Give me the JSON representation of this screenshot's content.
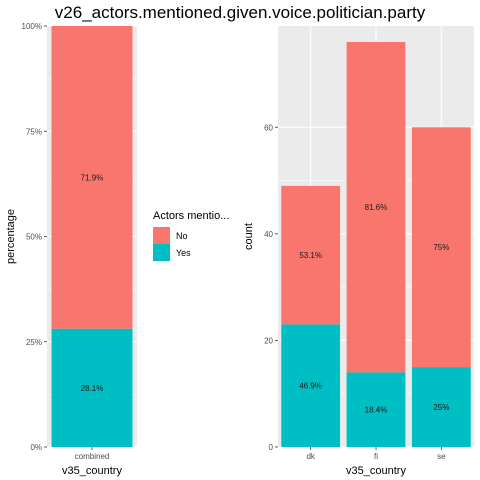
{
  "title": "v26_actors.mentioned.given.voice.politician.party",
  "legend": {
    "title": "Actors mentio...",
    "items": [
      {
        "label": "No",
        "color": "#F8766D"
      },
      {
        "label": "Yes",
        "color": "#00BFC4"
      }
    ]
  },
  "colors": {
    "no": "#F8766D",
    "yes": "#00BFC4",
    "panel": "#EBEBEB",
    "grid": "#FFFFFF"
  },
  "chart_data": [
    {
      "type": "bar",
      "stacked": true,
      "xlabel": "v35_country",
      "ylabel": "percentage",
      "categories": [
        "combined"
      ],
      "yticks": [
        "0%",
        "25%",
        "50%",
        "75%",
        "100%"
      ],
      "ylim": [
        0,
        1
      ],
      "series": [
        {
          "name": "No",
          "values": [
            0.719
          ],
          "labels": [
            "71.9%"
          ]
        },
        {
          "name": "Yes",
          "values": [
            0.281
          ],
          "labels": [
            "28.1%"
          ]
        }
      ]
    },
    {
      "type": "bar",
      "stacked": true,
      "xlabel": "v35_country",
      "ylabel": "count",
      "categories": [
        "dk",
        "fi",
        "se"
      ],
      "yticks": [
        "0",
        "20",
        "40",
        "60"
      ],
      "ylim": [
        0,
        79
      ],
      "series": [
        {
          "name": "No",
          "values": [
            26,
            62,
            45
          ],
          "labels": [
            "53.1%",
            "81.6%",
            "75%"
          ]
        },
        {
          "name": "Yes",
          "values": [
            23,
            14,
            15
          ],
          "labels": [
            "46.9%",
            "18.4%",
            "25%"
          ]
        }
      ]
    }
  ]
}
